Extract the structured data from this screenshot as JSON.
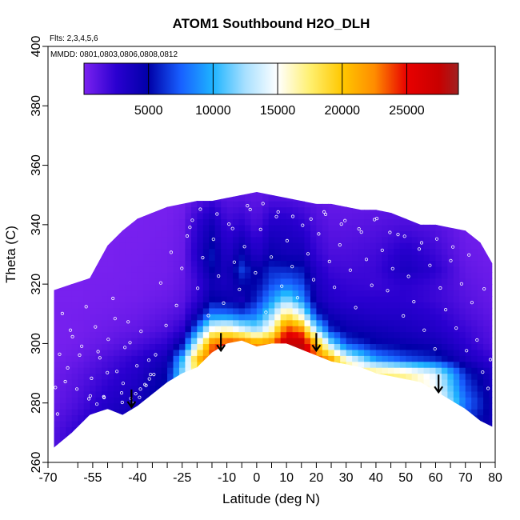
{
  "chart_data": {
    "type": "heatmap",
    "title": "ATOM1 Southbound H2O_DLH",
    "subtitle": "Flts: 2,3,4,5,6",
    "annotation": "MMDD: 0801,0803,0806,0808,0812",
    "xlabel": "Latitude (deg N)",
    "ylabel": "Theta (C)",
    "xlim": [
      -70,
      80
    ],
    "ylim": [
      260,
      400
    ],
    "x_ticks": [
      -70,
      -55,
      -40,
      -25,
      -10,
      0,
      10,
      20,
      30,
      40,
      50,
      60,
      70,
      80
    ],
    "x_tick_labels": [
      "-70",
      "-55",
      "-40",
      "-25",
      "-10",
      "0",
      "10",
      "20",
      "30",
      "40",
      "50",
      "60",
      "70",
      "80"
    ],
    "x_minor_ticks": [
      -60,
      -50,
      -45,
      -35,
      -30,
      -20,
      -15,
      -5,
      5,
      15,
      25,
      35,
      45,
      55,
      65,
      75
    ],
    "y_ticks": [
      260,
      280,
      300,
      320,
      340,
      360,
      380,
      400
    ],
    "y_tick_labels": [
      "260",
      "280",
      "300",
      "320",
      "340",
      "360",
      "380",
      "400"
    ],
    "colorbar": {
      "min": 0,
      "max": 29000,
      "ticks": [
        5000,
        10000,
        15000,
        20000,
        25000
      ],
      "tick_labels": [
        "5000",
        "10000",
        "15000",
        "20000",
        "25000"
      ],
      "placement": "top-inside",
      "stops": [
        {
          "v": 0,
          "c": "#7b22f0"
        },
        {
          "v": 2500,
          "c": "#2a00d0"
        },
        {
          "v": 5000,
          "c": "#0000a8"
        },
        {
          "v": 7500,
          "c": "#1860ff"
        },
        {
          "v": 10000,
          "c": "#1eb4ff"
        },
        {
          "v": 12500,
          "c": "#a8e0ff"
        },
        {
          "v": 15000,
          "c": "#ffffff"
        },
        {
          "v": 17500,
          "c": "#fff070"
        },
        {
          "v": 20000,
          "c": "#ffc800"
        },
        {
          "v": 22500,
          "c": "#ff8c00"
        },
        {
          "v": 25000,
          "c": "#e80000"
        },
        {
          "v": 27500,
          "c": "#c80000"
        },
        {
          "v": 29000,
          "c": "#a02020"
        }
      ]
    },
    "envelope": {
      "lat": [
        -68,
        -62,
        -56,
        -50,
        -45,
        -40,
        -35,
        -30,
        -25,
        -20,
        -15,
        -10,
        -5,
        0,
        5,
        10,
        15,
        20,
        25,
        30,
        35,
        40,
        45,
        50,
        55,
        60,
        65,
        70,
        75,
        79
      ],
      "top": [
        318,
        320,
        322,
        333,
        338,
        342,
        344,
        346,
        347,
        348,
        348,
        349,
        350,
        351,
        350,
        349,
        348,
        347,
        347,
        346,
        345,
        345,
        344,
        342,
        340,
        340,
        339,
        338,
        334,
        327
      ],
      "bottom": [
        265,
        270,
        276,
        278,
        276,
        279,
        283,
        287,
        290,
        292,
        297,
        300,
        301,
        299,
        300,
        300,
        298,
        296,
        294,
        293,
        292,
        290,
        289,
        288,
        287,
        284,
        281,
        278,
        274,
        272
      ]
    },
    "field": {
      "lat": [
        -70,
        -60,
        -50,
        -40,
        -30,
        -25,
        -20,
        -15,
        -10,
        -5,
        0,
        5,
        10,
        15,
        20,
        25,
        30,
        40,
        50,
        60,
        70,
        80
      ],
      "theta": [
        270,
        280,
        290,
        295,
        300,
        305,
        310,
        315,
        320,
        325,
        330,
        340,
        350
      ],
      "values": [
        [
          1000,
          2500,
          4000,
          5000,
          6500,
          8000,
          9000,
          9000,
          8000,
          8000,
          9000,
          9000,
          9500,
          9500,
          9500,
          9000,
          8000,
          8000,
          8000,
          7000,
          5000,
          4000
        ],
        [
          500,
          1500,
          3000,
          4000,
          6000,
          11000,
          14000,
          16000,
          18000,
          18000,
          17000,
          17000,
          18000,
          18000,
          18000,
          17000,
          16000,
          16000,
          16000,
          16000,
          8000,
          4000
        ],
        [
          300,
          1000,
          2000,
          3000,
          5000,
          12000,
          18000,
          21000,
          22000,
          22000,
          21000,
          21000,
          22000,
          22000,
          21000,
          20000,
          19000,
          18000,
          17000,
          14000,
          6000,
          3000
        ],
        [
          200,
          600,
          1500,
          2500,
          4000,
          10000,
          20000,
          24000,
          24500,
          24000,
          23000,
          24000,
          27000,
          27000,
          24000,
          21000,
          15000,
          9000,
          7000,
          6000,
          3500,
          2000
        ],
        [
          100,
          300,
          800,
          1500,
          2500,
          5000,
          14000,
          23000,
          25000,
          24500,
          22000,
          23000,
          28000,
          28000,
          21000,
          12000,
          7000,
          5000,
          4500,
          4000,
          2500,
          1200
        ],
        [
          100,
          200,
          500,
          800,
          1500,
          2500,
          8000,
          15000,
          16000,
          14000,
          12000,
          16000,
          24000,
          22000,
          12000,
          6000,
          4500,
          4000,
          3500,
          3000,
          2000,
          1000
        ],
        [
          100,
          200,
          300,
          500,
          1000,
          1500,
          4000,
          8000,
          8000,
          7000,
          8000,
          12000,
          18000,
          14000,
          6000,
          4000,
          3500,
          3000,
          3000,
          2500,
          1500,
          800
        ],
        [
          100,
          100,
          200,
          300,
          600,
          1000,
          2500,
          5000,
          4500,
          4000,
          6000,
          9000,
          12000,
          9000,
          4000,
          3000,
          2500,
          2500,
          2500,
          2000,
          1200,
          600
        ],
        [
          100,
          100,
          150,
          200,
          400,
          800,
          2000,
          4000,
          3500,
          5000,
          5000,
          7000,
          8000,
          7000,
          3500,
          2500,
          2200,
          2000,
          2500,
          2000,
          1000,
          500
        ],
        [
          100,
          100,
          100,
          200,
          300,
          700,
          2500,
          5000,
          3500,
          6500,
          4500,
          6000,
          6000,
          5500,
          3000,
          2000,
          1800,
          2000,
          3500,
          2500,
          800,
          400
        ],
        [
          100,
          100,
          100,
          150,
          300,
          600,
          3000,
          5500,
          3000,
          5000,
          3000,
          4500,
          4000,
          4000,
          2200,
          1500,
          1500,
          1800,
          3000,
          2000,
          600,
          300
        ],
        [
          100,
          100,
          100,
          100,
          200,
          500,
          2500,
          4000,
          2000,
          2500,
          1500,
          3000,
          3000,
          2500,
          1500,
          1000,
          1000,
          1200,
          1500,
          1200,
          400,
          200
        ],
        [
          100,
          100,
          100,
          100,
          100,
          300,
          1000,
          1500,
          1000,
          1000,
          800,
          1200,
          1200,
          1000,
          800,
          600,
          600,
          700,
          800,
          600,
          300,
          150
        ]
      ]
    },
    "samples": {
      "lat": [
        -67.5,
        -66.1,
        -65.2,
        -63.4,
        -61.8,
        -60.3,
        -58.7,
        -57.2,
        -55.4,
        -54.1,
        -52.6,
        -51.3,
        -49.8,
        -48.2,
        -46.9,
        -45.3,
        -44.2,
        -43.1,
        -41.7,
        -40.2,
        -38.8,
        -37.1,
        -35.6,
        -33.9,
        -32.2,
        -30.4,
        -28.7,
        -26.9,
        -25.1,
        -23.3,
        -21.6,
        -19.8,
        -18.1,
        -16.2,
        -14.5,
        -12.8,
        -11.1,
        -9.3,
        -7.5,
        -5.8,
        -4.1,
        -2.2,
        -0.4,
        1.3,
        3.1,
        4.9,
        6.6,
        8.4,
        10.2,
        11.9,
        13.7,
        15.4,
        17.2,
        19.1,
        20.8,
        22.6,
        24.4,
        26.1,
        27.9,
        29.6,
        31.4,
        33.2,
        35.1,
        36.8,
        38.6,
        40.3,
        42.1,
        43.9,
        45.6,
        47.4,
        49.2,
        50.9,
        52.7,
        54.5,
        56.2,
        58.1,
        59.8,
        61.6,
        63.4,
        65.1,
        66.9,
        68.7,
        70.4,
        72.2,
        73.9,
        75.8,
        77.6,
        -66.8,
        -64.2,
        -62.5,
        -59.4,
        -56.3,
        -53.2,
        -50.1,
        -47.5,
        -44.8,
        -42.5,
        -39.3,
        -36.2,
        -22.4,
        -18.9,
        -13.3,
        -8.1,
        -3.1,
        2.1,
        7.2,
        12.1,
        18.2,
        23.1,
        28.4,
        34.3,
        39.5,
        44.7,
        49.6,
        55.3,
        60.4,
        65.8,
        71.2,
        76.3,
        78.4,
        -45.1,
        -42.2,
        -40.6,
        -39.0,
        -37.5,
        -36.0,
        -34.5,
        -55.8,
        -53.6,
        -51.2
      ],
      "theta": [
        285.2,
        296.4,
        310.1,
        291.8,
        302.3,
        284.7,
        299.1,
        312.4,
        288.3,
        305.6,
        295.2,
        282.1,
        301.4,
        315.2,
        290.6,
        283.4,
        298.7,
        307.3,
        279.8,
        292.5,
        304.1,
        285.9,
        289.6,
        296.2,
        320.4,
        306.1,
        330.7,
        312.8,
        325.3,
        336.2,
        341.5,
        318.6,
        328.9,
        309.4,
        335.1,
        322.7,
        313.6,
        340.2,
        327.4,
        318.2,
        332.6,
        345.1,
        323.8,
        338.4,
        310.5,
        329.1,
        342.7,
        319.3,
        334.6,
        325.9,
        315.4,
        339.8,
        330.2,
        321.5,
        336.9,
        344.3,
        327.6,
        318.9,
        333.2,
        341.4,
        324.7,
        312.1,
        337.5,
        328.3,
        319.6,
        342.1,
        331.4,
        317.8,
        325.2,
        336.7,
        309.3,
        322.6,
        314.1,
        331.8,
        304.5,
        326.3,
        298.2,
        318.7,
        311.4,
        327.9,
        305.2,
        320.1,
        297.6,
        313.8,
        301.2,
        290.4,
        284.9,
        276.3,
        287.2,
        304.5,
        296.1,
        281.4,
        297.3,
        290.2,
        308.4,
        286.6,
        300.3,
        281.9,
        294.4,
        339.1,
        345.2,
        343.6,
        338.7,
        346.4,
        347.1,
        344.3,
        342.8,
        341.9,
        343.5,
        340.2,
        338.6,
        341.7,
        337.4,
        336.1,
        333.9,
        335.2,
        332.5,
        329.8,
        318.4,
        294.6,
        280.2,
        281.5,
        283.1,
        284.7,
        286.2,
        288.1,
        289.6,
        282.4,
        279.6,
        281.8
      ]
    },
    "arrows": {
      "lat": [
        -42,
        -12,
        20,
        61
      ],
      "theta": [
        284,
        303,
        303,
        289
      ]
    }
  }
}
